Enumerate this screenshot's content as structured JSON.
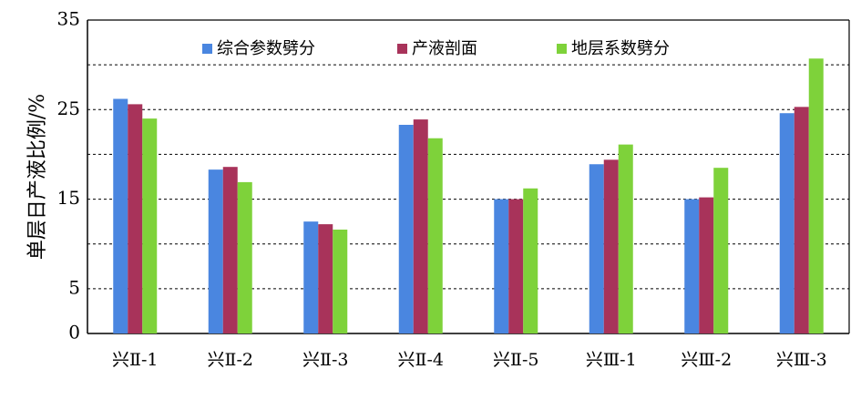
{
  "chart_data": {
    "type": "bar",
    "title": "",
    "xlabel": "",
    "ylabel": "单层日产液比例/%",
    "ylim": [
      0,
      35
    ],
    "yticks": [
      0,
      5,
      15,
      25,
      35
    ],
    "ytick_labels": [
      "0",
      "5",
      "15",
      "25",
      "35"
    ],
    "gridlines": [
      5,
      10,
      15,
      20,
      25,
      30
    ],
    "legend_position": "top-center",
    "categories": [
      "兴Ⅱ-1",
      "兴Ⅱ-2",
      "兴Ⅱ-3",
      "兴Ⅱ-4",
      "兴Ⅱ-5",
      "兴Ⅲ-1",
      "兴Ⅲ-2",
      "兴Ⅲ-3"
    ],
    "series": [
      {
        "name": "综合参数劈分",
        "color": "#4a86e0",
        "values": [
          26.2,
          18.3,
          12.5,
          23.3,
          15.0,
          18.9,
          15.0,
          24.6
        ]
      },
      {
        "name": "产液剖面",
        "color": "#a8335a",
        "values": [
          25.6,
          18.6,
          12.2,
          23.9,
          15.0,
          19.4,
          15.2,
          25.3
        ]
      },
      {
        "name": "地层系数劈分",
        "color": "#7ed23a",
        "values": [
          24.0,
          16.9,
          11.6,
          21.8,
          16.2,
          21.1,
          18.5,
          30.7
        ]
      }
    ]
  }
}
